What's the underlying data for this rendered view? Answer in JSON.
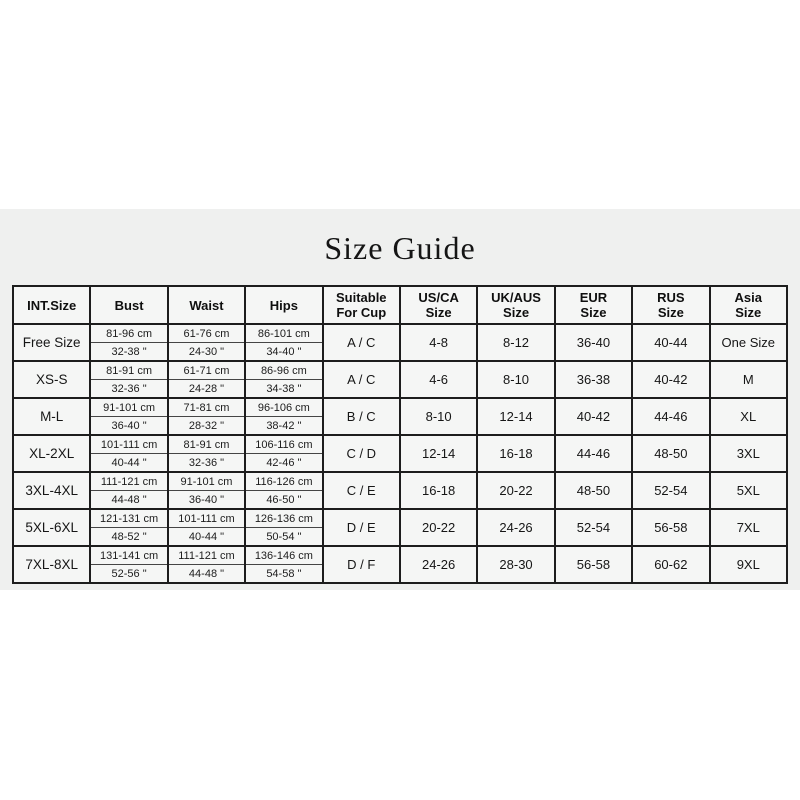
{
  "title": "Size Guide",
  "table": {
    "headers": [
      "INT.Size",
      "Bust",
      "Waist",
      "Hips",
      "Suitable\nFor Cup",
      "US/CA\nSize",
      "UK/AUS\nSize",
      "EUR\nSize",
      "RUS\nSize",
      "Asia\nSize"
    ],
    "rows": [
      {
        "int_size": "Free Size",
        "bust_cm": "81-96 cm",
        "bust_in": "32-38 \"",
        "waist_cm": "61-76 cm",
        "waist_in": "24-30 \"",
        "hips_cm": "86-101 cm",
        "hips_in": "34-40 \"",
        "cup": "A / C",
        "us_ca": "4-8",
        "uk_aus": "8-12",
        "eur": "36-40",
        "rus": "40-44",
        "asia": "One Size"
      },
      {
        "int_size": "XS-S",
        "bust_cm": "81-91 cm",
        "bust_in": "32-36 \"",
        "waist_cm": "61-71 cm",
        "waist_in": "24-28 \"",
        "hips_cm": "86-96 cm",
        "hips_in": "34-38 \"",
        "cup": "A / C",
        "us_ca": "4-6",
        "uk_aus": "8-10",
        "eur": "36-38",
        "rus": "40-42",
        "asia": "M"
      },
      {
        "int_size": "M-L",
        "bust_cm": "91-101 cm",
        "bust_in": "36-40 \"",
        "waist_cm": "71-81 cm",
        "waist_in": "28-32 \"",
        "hips_cm": "96-106 cm",
        "hips_in": "38-42 \"",
        "cup": "B / C",
        "us_ca": "8-10",
        "uk_aus": "12-14",
        "eur": "40-42",
        "rus": "44-46",
        "asia": "XL"
      },
      {
        "int_size": "XL-2XL",
        "bust_cm": "101-111 cm",
        "bust_in": "40-44 \"",
        "waist_cm": "81-91 cm",
        "waist_in": "32-36 \"",
        "hips_cm": "106-116 cm",
        "hips_in": "42-46 \"",
        "cup": "C / D",
        "us_ca": "12-14",
        "uk_aus": "16-18",
        "eur": "44-46",
        "rus": "48-50",
        "asia": "3XL"
      },
      {
        "int_size": "3XL-4XL",
        "bust_cm": "111-121 cm",
        "bust_in": "44-48 \"",
        "waist_cm": "91-101 cm",
        "waist_in": "36-40 \"",
        "hips_cm": "116-126 cm",
        "hips_in": "46-50 \"",
        "cup": "C / E",
        "us_ca": "16-18",
        "uk_aus": "20-22",
        "eur": "48-50",
        "rus": "52-54",
        "asia": "5XL"
      },
      {
        "int_size": "5XL-6XL",
        "bust_cm": "121-131 cm",
        "bust_in": "48-52 \"",
        "waist_cm": "101-111 cm",
        "waist_in": "40-44 \"",
        "hips_cm": "126-136 cm",
        "hips_in": "50-54 \"",
        "cup": "D / E",
        "us_ca": "20-22",
        "uk_aus": "24-26",
        "eur": "52-54",
        "rus": "56-58",
        "asia": "7XL"
      },
      {
        "int_size": "7XL-8XL",
        "bust_cm": "131-141 cm",
        "bust_in": "52-56 \"",
        "waist_cm": "111-121 cm",
        "waist_in": "44-48 \"",
        "hips_cm": "136-146 cm",
        "hips_in": "54-58 \"",
        "cup": "D / F",
        "us_ca": "24-26",
        "uk_aus": "28-30",
        "eur": "56-58",
        "rus": "60-62",
        "asia": "9XL"
      }
    ],
    "colors": {
      "panel_bg": "#eff0ef",
      "cell_bg": "#f5f6f5",
      "border": "#1d1d1d"
    }
  }
}
